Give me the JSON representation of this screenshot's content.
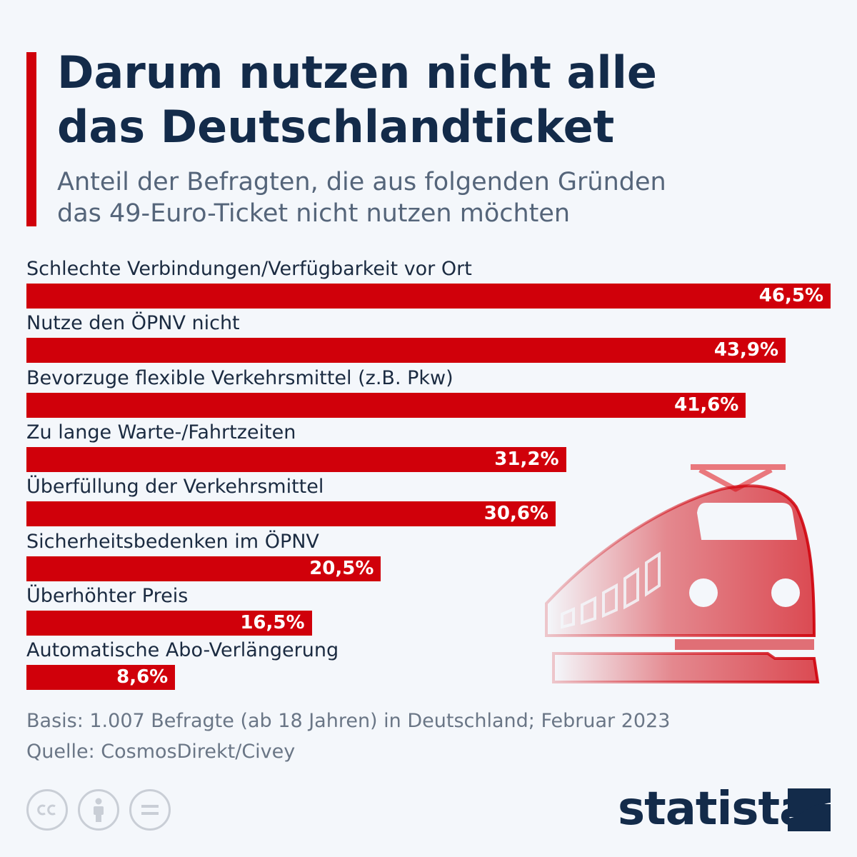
{
  "title_line1": "Darum nutzen nicht alle",
  "title_line2": "das Deutschlandticket",
  "subtitle_line1": "Anteil der Befragten, die aus folgenden Gründen",
  "subtitle_line2": "das 49-Euro-Ticket nicht nutzen möchten",
  "chart_data": {
    "type": "bar",
    "orientation": "horizontal",
    "unit": "%",
    "categories": [
      "Schlechte Verbindungen/Verfügbarkeit vor Ort",
      "Nutze den ÖPNV nicht",
      "Bevorzuge flexible Verkehrsmittel (z.B. Pkw)",
      "Zu lange Warte-/Fahrtzeiten",
      "Überfüllung der Verkehrsmittel",
      "Sicherheitsbedenken im ÖPNV",
      "Überhöhter Preis",
      "Automatische Abo-Verlängerung"
    ],
    "values": [
      46.5,
      43.9,
      41.6,
      31.2,
      30.6,
      20.5,
      16.5,
      8.6
    ],
    "value_labels": [
      "46,5%",
      "43,9%",
      "41,6%",
      "31,2%",
      "30,6%",
      "20,5%",
      "16,5%",
      "8,6%"
    ],
    "xlim": [
      0,
      46.5
    ],
    "grid": false,
    "bar_color": "#d0000a"
  },
  "footer": {
    "basis": "Basis: 1.007 Befragte (ab 18 Jahren) in Deutschland; Februar 2023",
    "source": "Quelle: CosmosDirekt/Civey"
  },
  "license_icons": [
    "cc-icon",
    "attribution-icon",
    "no-derivatives-icon"
  ],
  "brand": {
    "name": "statista",
    "text_color": "#132b4a",
    "accent_color": "#d0000a"
  },
  "decoration": "train-icon"
}
